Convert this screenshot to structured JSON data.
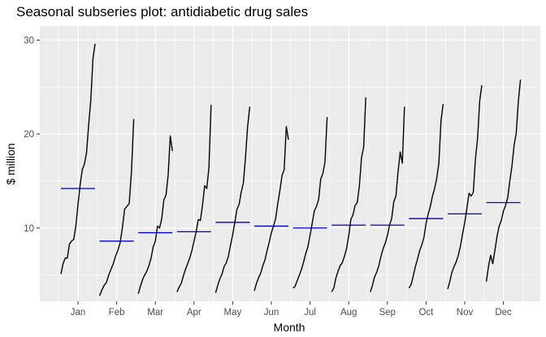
{
  "chart_data": {
    "type": "line",
    "title": "Seasonal subseries plot: antidiabetic drug sales",
    "xlabel": "Month",
    "ylabel": "$ million",
    "ylim": [
      2.2,
      31.5
    ],
    "yticks": [
      10,
      20,
      30
    ],
    "grid": true,
    "colors": {
      "panel": "#ebebeb",
      "grid": "#ffffff",
      "line": "#000000",
      "mean": "#0000cd"
    },
    "months": [
      {
        "label": "Jan",
        "mean": 14.2,
        "values": [
          5.1,
          6.2,
          6.8,
          6.8,
          8.3,
          8.6,
          8.8,
          10.2,
          12.5,
          14.6,
          16.2,
          16.8,
          18.0,
          21.0,
          23.6,
          28.0,
          29.6
        ]
      },
      {
        "label": "Feb",
        "mean": 8.6,
        "values": [
          2.8,
          3.4,
          3.9,
          4.2,
          5.0,
          5.6,
          6.2,
          7.0,
          7.6,
          8.4,
          10.0,
          12.0,
          12.3,
          12.6,
          16.0,
          21.6
        ]
      },
      {
        "label": "Mar",
        "mean": 9.5,
        "values": [
          3.0,
          3.8,
          4.5,
          5.0,
          5.4,
          6.0,
          6.8,
          8.0,
          8.6,
          10.2,
          10.0,
          11.0,
          13.0,
          13.5,
          15.6,
          19.8,
          18.2
        ]
      },
      {
        "label": "Apr",
        "mean": 9.6,
        "values": [
          3.2,
          3.7,
          4.1,
          4.9,
          5.6,
          6.2,
          6.8,
          7.6,
          8.6,
          9.6,
          10.9,
          10.8,
          12.5,
          14.5,
          14.2,
          16.5,
          23.1
        ]
      },
      {
        "label": "May",
        "mean": 10.6,
        "values": [
          3.1,
          3.9,
          4.6,
          5.1,
          5.9,
          6.3,
          7.0,
          8.2,
          9.3,
          10.6,
          12.0,
          12.5,
          13.8,
          14.8,
          17.5,
          20.8,
          22.9
        ]
      },
      {
        "label": "Jun",
        "mean": 10.2,
        "values": [
          3.3,
          4.1,
          4.7,
          5.2,
          6.0,
          6.6,
          7.6,
          8.5,
          9.5,
          10.2,
          11.0,
          12.6,
          14.0,
          15.6,
          16.2,
          20.8,
          19.4
        ]
      },
      {
        "label": "Jul",
        "mean": 10.0,
        "values": [
          3.6,
          3.8,
          4.4,
          5.0,
          5.6,
          6.4,
          7.3,
          8.0,
          9.2,
          10.5,
          11.8,
          12.3,
          13.0,
          15.2,
          15.8,
          17.0,
          21.8
        ]
      },
      {
        "label": "Aug",
        "mean": 10.3,
        "values": [
          3.2,
          3.6,
          4.7,
          5.4,
          6.0,
          6.3,
          7.0,
          7.8,
          9.2,
          10.9,
          11.4,
          12.4,
          12.7,
          14.5,
          17.5,
          18.6,
          23.9
        ]
      },
      {
        "label": "Sep",
        "mean": 10.3,
        "values": [
          3.2,
          3.9,
          4.8,
          5.3,
          6.0,
          7.0,
          7.8,
          8.4,
          9.2,
          10.3,
          11.0,
          12.8,
          13.4,
          16.0,
          18.1,
          16.9,
          22.9
        ]
      },
      {
        "label": "Oct",
        "mean": 11.0,
        "values": [
          3.6,
          4.0,
          4.9,
          5.9,
          6.7,
          7.6,
          8.2,
          9.0,
          10.5,
          11.5,
          12.3,
          13.4,
          14.2,
          15.3,
          16.9,
          21.4,
          23.2
        ]
      },
      {
        "label": "Nov",
        "mean": 11.5,
        "values": [
          3.5,
          4.3,
          5.3,
          5.9,
          6.4,
          7.1,
          8.1,
          9.4,
          10.6,
          12.1,
          13.7,
          13.4,
          13.8,
          17.3,
          19.5,
          23.5,
          25.2
        ]
      },
      {
        "label": "Dec",
        "mean": 12.7,
        "values": [
          4.3,
          5.9,
          7.1,
          6.2,
          7.6,
          9.1,
          10.2,
          10.8,
          11.8,
          12.4,
          13.2,
          15.0,
          16.6,
          18.8,
          20.1,
          23.5,
          25.8
        ]
      }
    ]
  }
}
